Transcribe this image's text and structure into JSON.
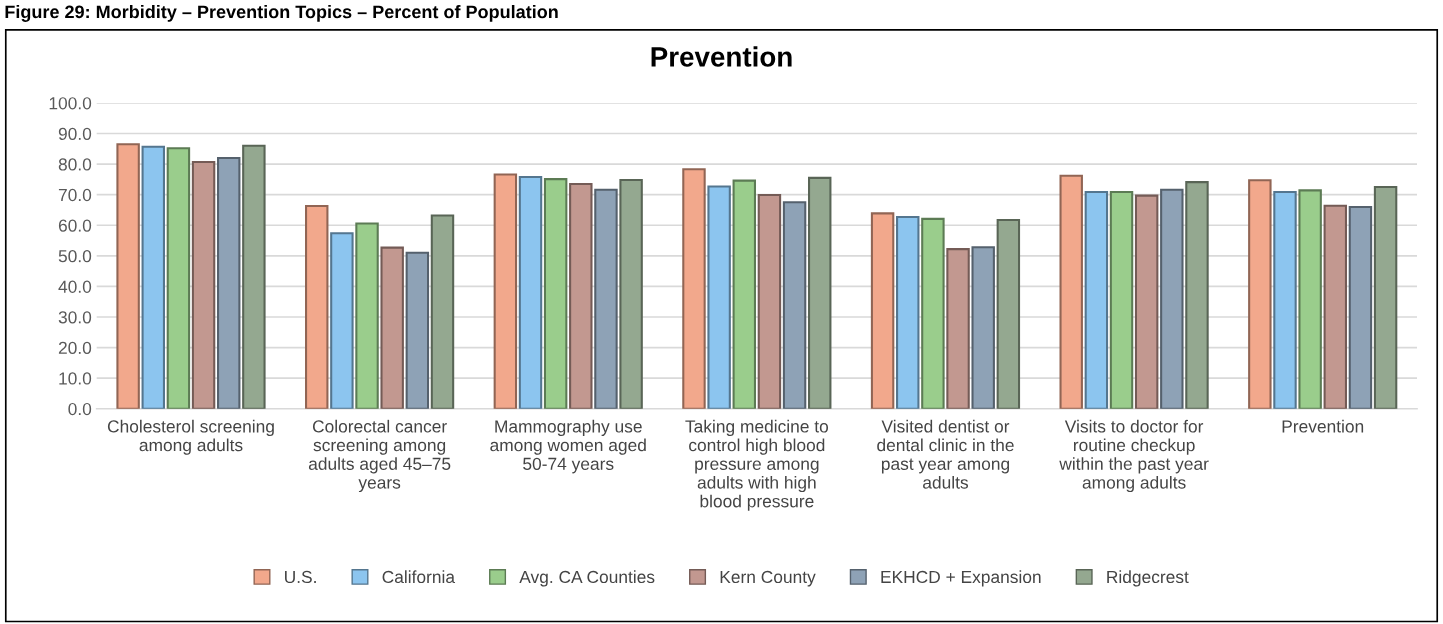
{
  "chart_data": {
    "type": "bar",
    "title": "Prevention",
    "annotations": [
      "Figure 29: Morbidity – Prevention Topics – Percent of Population"
    ],
    "categories": [
      "Cholesterol screening\namong adults",
      "Colorectal cancer\nscreening among\nadults aged 45–75\nyears",
      "Mammography use\namong women aged\n50-74 years",
      "Taking medicine to\ncontrol high blood\npressure among\nadults with high\nblood pressure",
      "Visited dentist or\ndental clinic in the\npast year among\nadults",
      "Visits to doctor for\nroutine checkup\nwithin the past year\namong adults",
      "Prevention"
    ],
    "series": [
      {
        "name": "U.S.",
        "color": "#f2a88c",
        "values": [
          86.5,
          66.3,
          76.6,
          78.3,
          63.9,
          76.2,
          74.7
        ]
      },
      {
        "name": "California",
        "color": "#8cc5ef",
        "values": [
          85.7,
          57.4,
          75.8,
          72.7,
          62.7,
          70.9,
          70.9
        ]
      },
      {
        "name": "Avg. CA Counties",
        "color": "#9acd8c",
        "values": [
          85.2,
          60.6,
          75.1,
          74.6,
          62.1,
          70.9,
          71.4
        ]
      },
      {
        "name": "Kern County",
        "color": "#c29890",
        "values": [
          80.7,
          52.7,
          73.5,
          69.9,
          52.2,
          69.7,
          66.4
        ]
      },
      {
        "name": "EKHCD + Expansion",
        "color": "#8ea2b6",
        "values": [
          82.0,
          51.0,
          71.6,
          67.5,
          52.8,
          71.6,
          66.0
        ]
      },
      {
        "name": "Ridgecrest",
        "color": "#94a890",
        "values": [
          86.0,
          63.2,
          74.8,
          75.5,
          61.7,
          74.1,
          72.5
        ]
      }
    ],
    "ylim": [
      0,
      100
    ],
    "yticks": [
      {
        "value": 0,
        "label": "0.0"
      },
      {
        "value": 10,
        "label": "10.0"
      },
      {
        "value": 20,
        "label": "20.0"
      },
      {
        "value": 30,
        "label": "30.0"
      },
      {
        "value": 40,
        "label": "40.0"
      },
      {
        "value": 50,
        "label": "50.0"
      },
      {
        "value": 60,
        "label": "60.0"
      },
      {
        "value": 70,
        "label": "70.0"
      },
      {
        "value": 80,
        "label": "80.0"
      },
      {
        "value": 90,
        "label": "90.0"
      },
      {
        "value": 100,
        "label": "100.0"
      }
    ],
    "grid": "y",
    "legend": "bottom"
  }
}
